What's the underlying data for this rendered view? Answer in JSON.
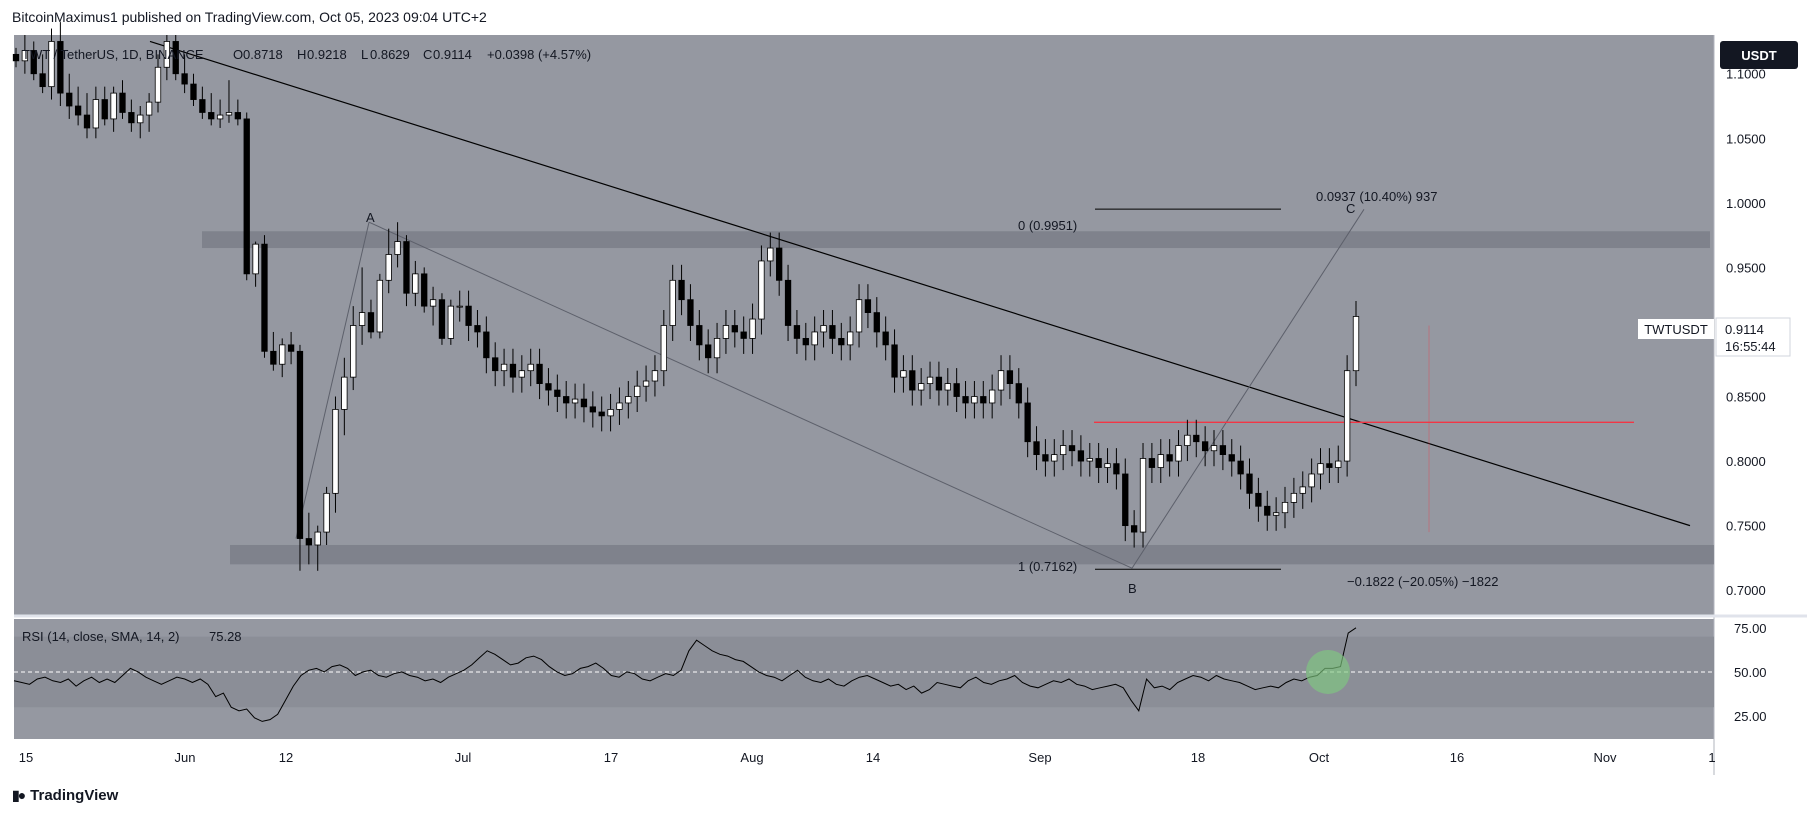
{
  "header": {
    "publisher": "BitcoinMaximus1 published on TradingView.com, Oct 05, 2023 09:04 UTC+2"
  },
  "footer": {
    "brand": "TradingView"
  },
  "colors": {
    "pane_bg": "#9598a1",
    "band": "#787b86",
    "up_body": "#ffffff",
    "down_body": "#000000",
    "wick": "#000000",
    "trendline": "#000000",
    "fib_line": "#000000",
    "resistance_red": "#f23645",
    "rsi_line": "#000000",
    "rsi_highlight": "#7fc97f"
  },
  "chart_data": [
    {
      "type": "candlestick",
      "title": "TWT / TetherUS, 1D, BINANCE",
      "ohlc": {
        "O": "0.8718",
        "H": "0.9218",
        "L": "0.8629",
        "C": "0.9114",
        "change": "+0.0398 (+4.57%)"
      },
      "ohlc_labels": {
        "O": "O",
        "H": "H",
        "L": "L",
        "C": "C"
      },
      "currency": "USDT",
      "symbol_tag": "TWTUSDT",
      "last_price": "0.9114",
      "countdown": "16:55:44",
      "y_ticks": [
        "1.1000",
        "1.0500",
        "1.0000",
        "0.9500",
        "0.9000",
        "0.8500",
        "0.8000",
        "0.7500",
        "0.7000"
      ],
      "x_ticks": [
        "15",
        "Jun",
        "12",
        "Jul",
        "17",
        "Aug",
        "14",
        "Sep",
        "18",
        "Oct",
        "16",
        "Nov",
        "1"
      ],
      "ylim": [
        0.68,
        1.13
      ],
      "candles": [
        [
          1.115,
          1.12,
          1.105,
          1.11
        ],
        [
          1.11,
          1.13,
          1.1,
          1.118
        ],
        [
          1.118,
          1.125,
          1.095,
          1.1
        ],
        [
          1.1,
          1.115,
          1.085,
          1.09
        ],
        [
          1.09,
          1.135,
          1.08,
          1.125
        ],
        [
          1.125,
          1.14,
          1.075,
          1.085
        ],
        [
          1.085,
          1.1,
          1.065,
          1.075
        ],
        [
          1.075,
          1.09,
          1.06,
          1.068
        ],
        [
          1.068,
          1.085,
          1.05,
          1.058
        ],
        [
          1.058,
          1.09,
          1.05,
          1.08
        ],
        [
          1.08,
          1.09,
          1.06,
          1.065
        ],
        [
          1.065,
          1.09,
          1.055,
          1.085
        ],
        [
          1.085,
          1.095,
          1.065,
          1.07
        ],
        [
          1.07,
          1.08,
          1.055,
          1.062
        ],
        [
          1.062,
          1.075,
          1.05,
          1.068
        ],
        [
          1.068,
          1.085,
          1.055,
          1.078
        ],
        [
          1.078,
          1.115,
          1.07,
          1.105
        ],
        [
          1.105,
          1.13,
          1.095,
          1.125
        ],
        [
          1.125,
          1.13,
          1.095,
          1.1
        ],
        [
          1.1,
          1.115,
          1.085,
          1.092
        ],
        [
          1.092,
          1.1,
          1.075,
          1.08
        ],
        [
          1.08,
          1.09,
          1.065,
          1.07
        ],
        [
          1.07,
          1.085,
          1.06,
          1.065
        ],
        [
          1.065,
          1.08,
          1.058,
          1.068
        ],
        [
          1.068,
          1.095,
          1.062,
          1.07
        ],
        [
          1.07,
          1.08,
          1.06,
          1.065
        ],
        [
          1.065,
          1.07,
          0.94,
          0.945
        ],
        [
          0.945,
          0.97,
          0.935,
          0.968
        ],
        [
          0.968,
          0.975,
          0.88,
          0.885
        ],
        [
          0.885,
          0.9,
          0.87,
          0.875
        ],
        [
          0.875,
          0.895,
          0.865,
          0.89
        ],
        [
          0.89,
          0.9,
          0.875,
          0.885
        ],
        [
          0.885,
          0.89,
          0.715,
          0.74
        ],
        [
          0.74,
          0.76,
          0.72,
          0.735
        ],
        [
          0.735,
          0.75,
          0.715,
          0.745
        ],
        [
          0.745,
          0.78,
          0.735,
          0.775
        ],
        [
          0.775,
          0.85,
          0.76,
          0.84
        ],
        [
          0.84,
          0.88,
          0.82,
          0.865
        ],
        [
          0.865,
          0.92,
          0.855,
          0.905
        ],
        [
          0.905,
          0.95,
          0.89,
          0.915
        ],
        [
          0.915,
          0.925,
          0.895,
          0.9
        ],
        [
          0.9,
          0.945,
          0.895,
          0.94
        ],
        [
          0.94,
          0.98,
          0.93,
          0.96
        ],
        [
          0.96,
          0.985,
          0.95,
          0.97
        ],
        [
          0.97,
          0.975,
          0.92,
          0.93
        ],
        [
          0.93,
          0.955,
          0.92,
          0.945
        ],
        [
          0.945,
          0.95,
          0.915,
          0.92
        ],
        [
          0.92,
          0.935,
          0.905,
          0.925
        ],
        [
          0.925,
          0.93,
          0.89,
          0.895
        ],
        [
          0.895,
          0.925,
          0.89,
          0.92
        ]
      ],
      "annotations": {
        "fib_top": "0 (0.9951)",
        "fib_bottom": "1 (0.7162)",
        "measure_up": "0.0937 (10.40%) 937",
        "measure_down": "−0.1822 (−20.05%) −1822",
        "point_a": "A",
        "point_b": "B",
        "point_c": "C",
        "resistance_level": 0.83,
        "support_band": [
          0.72,
          0.735
        ],
        "resistance_band": [
          0.965,
          0.978
        ],
        "trendline": [
          [
            1.125,
            0
          ],
          [
            0.75,
            1
          ]
        ]
      }
    },
    {
      "type": "line",
      "title": "RSI (14, close, SMA, 14, 2)",
      "current_value": "75.28",
      "y_ticks": [
        "75.00",
        "50.00",
        "25.00"
      ],
      "ylim": [
        12,
        80
      ],
      "band": [
        30,
        70
      ],
      "midline": 50,
      "values": [
        45,
        44,
        43,
        46,
        47,
        45,
        44,
        46,
        42,
        45,
        47,
        44,
        46,
        44,
        48,
        52,
        50,
        47,
        45,
        43,
        45,
        47,
        46,
        44,
        46,
        43,
        36,
        38,
        30,
        28,
        29,
        24,
        22,
        23,
        26,
        34,
        42,
        48,
        51,
        52,
        50,
        53,
        54,
        52,
        48,
        50,
        51,
        48,
        47,
        49,
        50,
        48,
        47,
        45,
        46,
        44,
        47,
        49,
        51,
        54,
        58,
        62,
        60,
        57,
        54,
        55,
        58,
        59,
        57,
        53,
        50,
        48,
        49,
        52,
        53,
        55,
        52,
        48,
        47,
        50,
        49,
        46,
        45,
        47,
        49,
        48,
        51,
        62,
        68,
        65,
        62,
        60,
        59,
        57,
        56,
        53,
        50,
        48,
        47,
        45,
        48,
        51,
        47,
        45,
        44,
        46,
        43,
        42,
        45,
        47,
        48,
        46,
        44,
        42,
        43,
        40,
        42,
        38,
        40,
        44,
        43,
        42,
        41,
        45,
        47,
        44,
        43,
        45,
        46,
        48,
        44,
        42,
        41,
        43,
        45,
        44,
        46,
        43,
        42,
        40,
        41,
        42,
        43,
        41,
        34,
        28,
        46,
        41,
        42,
        40,
        44,
        46,
        48,
        47,
        45,
        48,
        46,
        45,
        44,
        42,
        40,
        41,
        42,
        41,
        44,
        46,
        45,
        47,
        48,
        52,
        52,
        53,
        72,
        75
      ]
    }
  ]
}
